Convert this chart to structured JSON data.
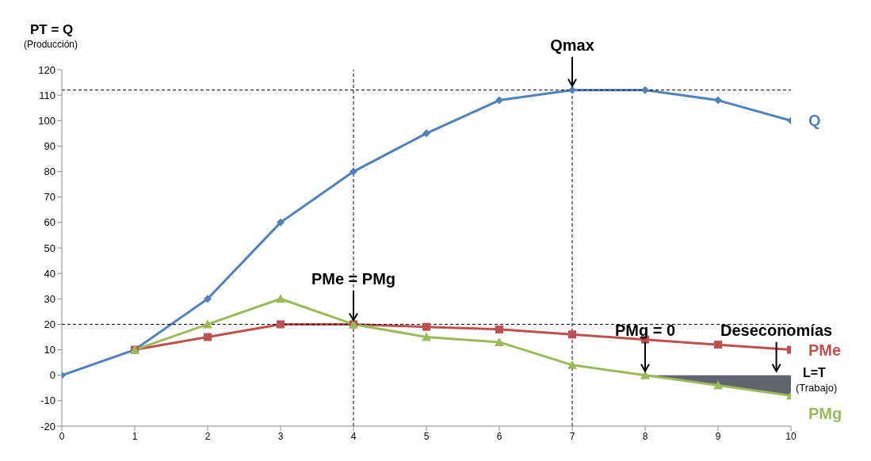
{
  "chart_data": {
    "type": "line",
    "ylabel": "PT = Q",
    "xlabel": "L=T",
    "xlim": [
      0,
      10
    ],
    "xticks": [
      0,
      1,
      2,
      3,
      4,
      5,
      6,
      7,
      8,
      9,
      10
    ],
    "ylim": [
      -20,
      120
    ],
    "yticks": [
      -20,
      -10,
      0,
      10,
      20,
      30,
      40,
      50,
      60,
      70,
      80,
      90,
      100,
      110,
      120
    ],
    "line_style": "solid",
    "series": [
      {
        "name": "Q",
        "color": "#4f81bd",
        "marker": "diamond",
        "x": [
          0,
          1,
          2,
          3,
          4,
          5,
          6,
          7,
          8,
          9,
          10
        ],
        "values": [
          0,
          10,
          30,
          60,
          80,
          95,
          108,
          112,
          112,
          108,
          100
        ]
      },
      {
        "name": "PMe",
        "color": "#c0504d",
        "marker": "square",
        "x": [
          1,
          2,
          3,
          4,
          5,
          6,
          7,
          8,
          9,
          10
        ],
        "values": [
          10,
          15,
          20,
          20,
          19,
          18,
          16,
          14,
          12,
          10
        ]
      },
      {
        "name": "PMg",
        "color": "#9bbb59",
        "marker": "triangle",
        "x": [
          1,
          2,
          3,
          4,
          5,
          6,
          7,
          8,
          9,
          10
        ],
        "values": [
          10,
          20,
          30,
          20,
          15,
          13,
          4,
          0,
          -4,
          -8
        ]
      },
      {
        "type": "area",
        "color": "#5f6670",
        "x": [
          8,
          10
        ],
        "values": [
          0,
          -8
        ]
      }
    ],
    "ref_lines": [
      {
        "axis": "y",
        "value": 112,
        "line_style": "dashed",
        "color": "#000000"
      },
      {
        "axis": "y",
        "value": 20,
        "line_style": "dashed",
        "color": "#000000"
      },
      {
        "axis": "x",
        "value": 4,
        "line_style": "dashed",
        "color": "#000000"
      },
      {
        "axis": "x",
        "value": 7,
        "line_style": "dashed",
        "color": "#000000"
      }
    ],
    "annotations": [
      {
        "text": "Qmax",
        "x": 7,
        "y": 112
      },
      {
        "text": "PMe = PMg",
        "x": 4,
        "y": 20
      },
      {
        "text": "PMg = 0",
        "x": 8,
        "y": 0
      },
      {
        "text": "Deseconomías",
        "x": 9.8,
        "y": 0
      },
      "(Producción)",
      "(Trabajo)"
    ]
  }
}
